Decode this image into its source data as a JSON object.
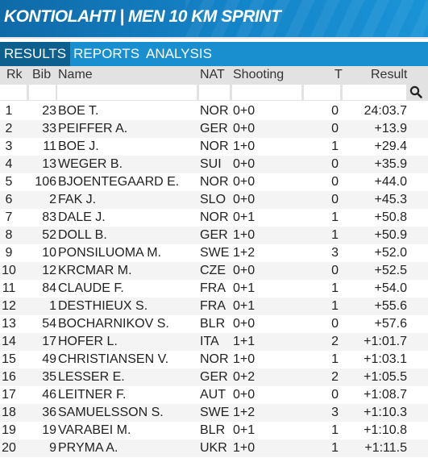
{
  "banner": {
    "title": "KONTIOLAHTI | MEN 10 KM SPRINT"
  },
  "tabs": [
    {
      "label": "RESULTS",
      "active": true
    },
    {
      "label": "REPORTS",
      "active": false
    },
    {
      "label": "ANALYSIS",
      "active": false
    }
  ],
  "columns": {
    "rk": "Rk",
    "bib": "Bib",
    "name": "Name",
    "nat": "NAT",
    "shooting": "Shooting",
    "t": "T",
    "result": "Result"
  },
  "search_icon": "search-icon",
  "rows": [
    {
      "rk": "1",
      "bib": "23",
      "name": "BOE T.",
      "nat": "NOR",
      "shooting": "0+0",
      "t": "0",
      "result": "24:03.7"
    },
    {
      "rk": "2",
      "bib": "33",
      "name": "PEIFFER A.",
      "nat": "GER",
      "shooting": "0+0",
      "t": "0",
      "result": "+13.9"
    },
    {
      "rk": "3",
      "bib": "11",
      "name": "BOE J.",
      "nat": "NOR",
      "shooting": "1+0",
      "t": "1",
      "result": "+29.4"
    },
    {
      "rk": "4",
      "bib": "13",
      "name": "WEGER B.",
      "nat": "SUI",
      "shooting": "0+0",
      "t": "0",
      "result": "+35.9"
    },
    {
      "rk": "5",
      "bib": "106",
      "name": "BJOENTEGAARD E.",
      "nat": "NOR",
      "shooting": "0+0",
      "t": "0",
      "result": "+44.0"
    },
    {
      "rk": "6",
      "bib": "2",
      "name": "FAK J.",
      "nat": "SLO",
      "shooting": "0+0",
      "t": "0",
      "result": "+45.3"
    },
    {
      "rk": "7",
      "bib": "83",
      "name": "DALE J.",
      "nat": "NOR",
      "shooting": "0+1",
      "t": "1",
      "result": "+50.8"
    },
    {
      "rk": "8",
      "bib": "52",
      "name": "DOLL B.",
      "nat": "GER",
      "shooting": "1+0",
      "t": "1",
      "result": "+50.9"
    },
    {
      "rk": "9",
      "bib": "10",
      "name": "PONSILUOMA M.",
      "nat": "SWE",
      "shooting": "1+2",
      "t": "3",
      "result": "+52.0"
    },
    {
      "rk": "10",
      "bib": "12",
      "name": "KRCMAR M.",
      "nat": "CZE",
      "shooting": "0+0",
      "t": "0",
      "result": "+52.5"
    },
    {
      "rk": "11",
      "bib": "84",
      "name": "CLAUDE F.",
      "nat": "FRA",
      "shooting": "0+1",
      "t": "1",
      "result": "+54.0"
    },
    {
      "rk": "12",
      "bib": "1",
      "name": "DESTHIEUX S.",
      "nat": "FRA",
      "shooting": "0+1",
      "t": "1",
      "result": "+55.6"
    },
    {
      "rk": "13",
      "bib": "54",
      "name": "BOCHARNIKOV S.",
      "nat": "BLR",
      "shooting": "0+0",
      "t": "0",
      "result": "+57.6"
    },
    {
      "rk": "14",
      "bib": "17",
      "name": "HOFER L.",
      "nat": "ITA",
      "shooting": "1+1",
      "t": "2",
      "result": "+1:01.7"
    },
    {
      "rk": "15",
      "bib": "49",
      "name": "CHRISTIANSEN V.",
      "nat": "NOR",
      "shooting": "1+0",
      "t": "1",
      "result": "+1:03.1"
    },
    {
      "rk": "16",
      "bib": "35",
      "name": "LESSER E.",
      "nat": "GER",
      "shooting": "0+2",
      "t": "2",
      "result": "+1:05.5"
    },
    {
      "rk": "17",
      "bib": "46",
      "name": "LEITNER F.",
      "nat": "AUT",
      "shooting": "0+0",
      "t": "0",
      "result": "+1:08.7"
    },
    {
      "rk": "18",
      "bib": "36",
      "name": "SAMUELSSON S.",
      "nat": "SWE",
      "shooting": "1+2",
      "t": "3",
      "result": "+1:10.3"
    },
    {
      "rk": "19",
      "bib": "19",
      "name": "VARABEI M.",
      "nat": "BLR",
      "shooting": "0+1",
      "t": "1",
      "result": "+1:10.8"
    },
    {
      "rk": "20",
      "bib": "9",
      "name": "PRYMA A.",
      "nat": "UKR",
      "shooting": "1+0",
      "t": "1",
      "result": "+1:11.5"
    }
  ],
  "colors": {
    "banner": "#1484c8",
    "tabbar": "#1a8fd0",
    "tab_active": "#0d5f8e",
    "header_bg": "#e2e2e2"
  }
}
